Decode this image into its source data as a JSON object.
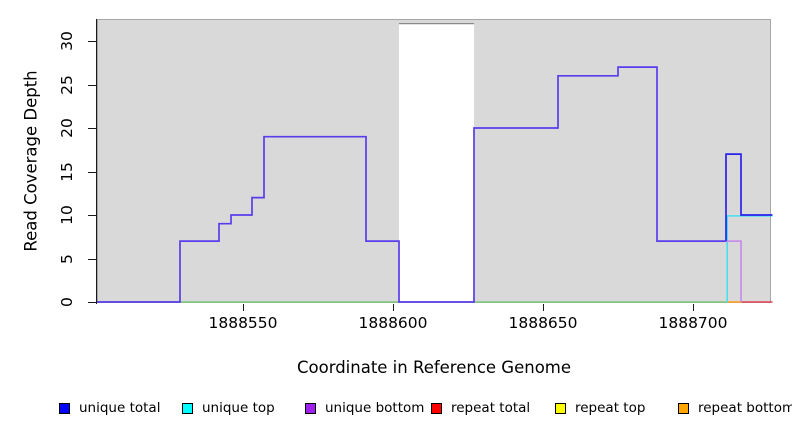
{
  "axes": {
    "y_label": "Read Coverage Depth",
    "x_label": "Coordinate in Reference Genome",
    "y_ticks": [
      0,
      5,
      10,
      15,
      20,
      25,
      30
    ],
    "x_ticks": [
      1888550,
      1888600,
      1888650,
      1888700
    ]
  },
  "legend": [
    {
      "label": "unique total",
      "color": "#0000ff"
    },
    {
      "label": "unique top",
      "color": "#00ffff"
    },
    {
      "label": "unique bottom",
      "color": "#a020f0"
    },
    {
      "label": "repeat total",
      "color": "#ff0000"
    },
    {
      "label": "repeat top",
      "color": "#ffff00"
    },
    {
      "label": "repeat bottom",
      "color": "#ffa500"
    }
  ],
  "colors": {
    "plot_background": "#d9d9d9",
    "plot_border": "#a6a6a6",
    "masked_band_fill": "#ffffff",
    "masked_band_top_border": "#8a8a8a",
    "curve_overlap_violet": "#5a3cec",
    "unique_total_blue": "#2a22ec",
    "unique_top_cyan": "#3fe1f0",
    "unique_bottom_plum": "#c583ea",
    "repeat_total_red": "#e34457",
    "repeat_bottom_orange": "#ffa020",
    "zero_baseline_green": "#7fc87f"
  },
  "chart_data": {
    "type": "line",
    "style": "step",
    "title": "",
    "xlabel": "Coordinate in Reference Genome",
    "ylabel": "Read Coverage Depth",
    "xlim": [
      1888501,
      1888726
    ],
    "ylim": [
      0,
      32.6
    ],
    "grid": false,
    "legend_position": "bottom",
    "masked_region": {
      "x_start": 1888602,
      "x_end": 1888627,
      "y_bottom": 0,
      "y_top": 32
    },
    "series": [
      {
        "name": "unique total",
        "step_points": [
          [
            1888501,
            0
          ],
          [
            1888529,
            7
          ],
          [
            1888542,
            9
          ],
          [
            1888546,
            10
          ],
          [
            1888553,
            12
          ],
          [
            1888557,
            19
          ],
          [
            1888591,
            7
          ],
          [
            1888602,
            0
          ],
          [
            1888627,
            20
          ],
          [
            1888655,
            26
          ],
          [
            1888675,
            27
          ],
          [
            1888688,
            7
          ],
          [
            1888711,
            17
          ],
          [
            1888716,
            10
          ]
        ],
        "x_end": 1888726
      },
      {
        "name": "unique top",
        "step_points": [
          [
            1888501,
            0
          ],
          [
            1888711,
            10
          ]
        ],
        "x_end": 1888726
      },
      {
        "name": "unique bottom",
        "step_points": [
          [
            1888501,
            0
          ],
          [
            1888529,
            7
          ],
          [
            1888542,
            9
          ],
          [
            1888546,
            10
          ],
          [
            1888553,
            12
          ],
          [
            1888557,
            19
          ],
          [
            1888591,
            7
          ],
          [
            1888602,
            0
          ],
          [
            1888627,
            20
          ],
          [
            1888655,
            26
          ],
          [
            1888675,
            27
          ],
          [
            1888688,
            7
          ],
          [
            1888716,
            0
          ]
        ],
        "x_end": 1888726
      },
      {
        "name": "repeat total",
        "step_points": [
          [
            1888501,
            0
          ]
        ],
        "x_end": 1888726
      },
      {
        "name": "repeat top",
        "step_points": [
          [
            1888501,
            0
          ]
        ],
        "x_end": 1888726
      },
      {
        "name": "repeat bottom",
        "step_points": [
          [
            1888501,
            0
          ]
        ],
        "x_end": 1888726
      }
    ],
    "render_series": [
      {
        "name": "zero-baseline-green",
        "mode": "xy",
        "color": "#7fc87f",
        "w": 1.4,
        "pts": [
          [
            1888501.3,
            0
          ],
          [
            1888711,
            0
          ]
        ]
      },
      {
        "name": "repeat-bottom-line",
        "mode": "xy",
        "color": "#ffa020",
        "w": 1.6,
        "pts": [
          [
            1888711,
            0
          ],
          [
            1888716.2,
            0
          ]
        ]
      },
      {
        "name": "repeat-total-line",
        "mode": "xy",
        "color": "#e34457",
        "w": 1.6,
        "pts": [
          [
            1888716.2,
            0
          ],
          [
            1888726.5,
            0
          ]
        ]
      },
      {
        "name": "unique-top-line",
        "mode": "xy",
        "color": "#3fe1f0",
        "w": 1.5,
        "yoff": 0.9,
        "pts": [
          [
            1888711.4,
            0
          ],
          [
            1888711.4,
            10
          ],
          [
            1888726.5,
            10
          ]
        ]
      },
      {
        "name": "unique-bottom-tail",
        "mode": "xy",
        "color": "#c583ea",
        "w": 1.5,
        "pts": [
          [
            1888711,
            7
          ],
          [
            1888716,
            7
          ],
          [
            1888716,
            0
          ]
        ]
      },
      {
        "name": "unique-total-tail",
        "mode": "xy",
        "color": "#2a22ec",
        "w": 1.7,
        "pts": [
          [
            1888711,
            7
          ],
          [
            1888711,
            17
          ],
          [
            1888716,
            17
          ],
          [
            1888716,
            10
          ],
          [
            1888726.5,
            10
          ]
        ]
      },
      {
        "name": "coverage-step-curve",
        "mode": "step",
        "color": "#5a3cec",
        "w": 1.7,
        "pts": [
          [
            1888501.3,
            0
          ],
          [
            1888529,
            7
          ],
          [
            1888542,
            9
          ],
          [
            1888546,
            10
          ],
          [
            1888553,
            12
          ],
          [
            1888557,
            19
          ],
          [
            1888591,
            7
          ],
          [
            1888602,
            0
          ],
          [
            1888627,
            20
          ],
          [
            1888655,
            26
          ],
          [
            1888675,
            27
          ],
          [
            1888688,
            7
          ]
        ],
        "x_end": 1888711
      }
    ]
  }
}
